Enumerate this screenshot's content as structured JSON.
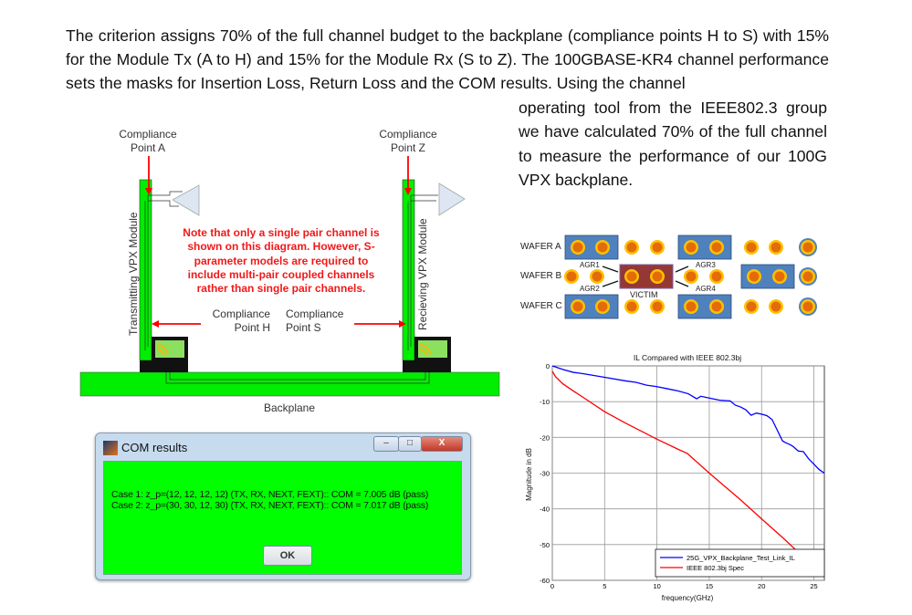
{
  "paragraph": "The criterion assigns 70% of the full channel budget to the backplane (compliance points H to S) with 15% for the Module Tx (A to H) and 15% for the Module Rx (S to Z). The 100GBASE-KR4 channel performance sets the masks for Insertion Loss, Return Loss and the COM results. Using the channel",
  "side_text": "operating tool from the IEEE802.3 group we have calculated 70% of the full channel to measure the performance of our 100G VPX backplane.",
  "diagram": {
    "point_a": [
      "Compliance",
      "Point A"
    ],
    "point_z": [
      "Compliance",
      "Point Z"
    ],
    "point_h": [
      "Compliance",
      "Point H"
    ],
    "point_s": [
      "Compliance",
      "Point S"
    ],
    "tx_module": "Transmitting VPX Module",
    "rx_module": "Recieving VPX Module",
    "backplane": "Backplane",
    "note": "Note that only a single pair channel is shown on this diagram.  However, S-parameter models are required to include multi-pair coupled channels rather than single pair channels.",
    "colors": {
      "board": "#00ee00",
      "note": "#f21818",
      "arrow": "#ff0000"
    }
  },
  "wafer": {
    "rows": [
      "WAFER A",
      "WAFER B",
      "WAFER C"
    ],
    "aggressors": [
      "AGR1",
      "AGR2",
      "AGR3",
      "AGR4"
    ],
    "victim": "VICTIM",
    "colors": {
      "pair": "#4f81bd",
      "victim": "#953735",
      "pin": "#e36c09",
      "pin_ring": "#ffc000"
    }
  },
  "dialog": {
    "title": "COM results",
    "icon": "matlab-icon",
    "case1": "Case 1: z_p=(12, 12, 12, 12) (TX, RX, NEXT, FEXT):: COM = 7.005 dB (pass)",
    "case2": "Case 2: z_p=(30, 30, 12, 30) (TX, RX, NEXT, FEXT):: COM = 7.017 dB (pass)",
    "ok": "OK",
    "minimize": "–",
    "maximize": "□",
    "close": "X"
  },
  "chart_data": {
    "type": "line",
    "title": "IL Compared with IEEE 802.3bj",
    "xlabel": "frequency(GHz)",
    "ylabel": "Magnitude in dB",
    "xlim": [
      0,
      26
    ],
    "ylim": [
      -60,
      0
    ],
    "xticks": [
      0,
      5,
      10,
      15,
      20,
      25
    ],
    "yticks": [
      0,
      -10,
      -20,
      -30,
      -40,
      -50,
      -60
    ],
    "grid": true,
    "legend_position": "bottom-right",
    "series": [
      {
        "name": "25G_VPX_Backplane_Test_Link_IL",
        "color": "#0000ff",
        "x": [
          0,
          1,
          2,
          3,
          5,
          7,
          8,
          9,
          10,
          11,
          12,
          13,
          13.8,
          14.2,
          15,
          16,
          17,
          17.5,
          18,
          18.5,
          19,
          19.5,
          20,
          20.5,
          21,
          21.5,
          22,
          22.3,
          22.7,
          23,
          23.5,
          24,
          24.5,
          25,
          25.5,
          26
        ],
        "y": [
          0,
          -1,
          -1.8,
          -2.2,
          -3.2,
          -4.2,
          -4.6,
          -5.4,
          -5.8,
          -6.4,
          -7,
          -7.8,
          -9.2,
          -8.5,
          -9,
          -9.6,
          -9.8,
          -11,
          -11.5,
          -12.3,
          -13.8,
          -13.2,
          -13.5,
          -13.9,
          -15,
          -18,
          -21,
          -21.5,
          -22,
          -22.5,
          -23.8,
          -24,
          -26,
          -27.5,
          -29,
          -30
        ]
      },
      {
        "name": "IEEE 802.3bj Spec",
        "color": "#ff0000",
        "x": [
          0,
          0.3,
          1,
          2,
          3,
          5,
          7,
          8,
          10,
          12,
          12.9,
          15,
          18,
          20,
          22,
          24,
          25,
          26
        ],
        "y": [
          -1.5,
          -3,
          -5,
          -7,
          -8.9,
          -12.8,
          -16,
          -17.5,
          -20.5,
          -23.3,
          -24.5,
          -30,
          -37.5,
          -42.8,
          -48,
          -53.5,
          -56,
          -58.5
        ]
      }
    ]
  }
}
